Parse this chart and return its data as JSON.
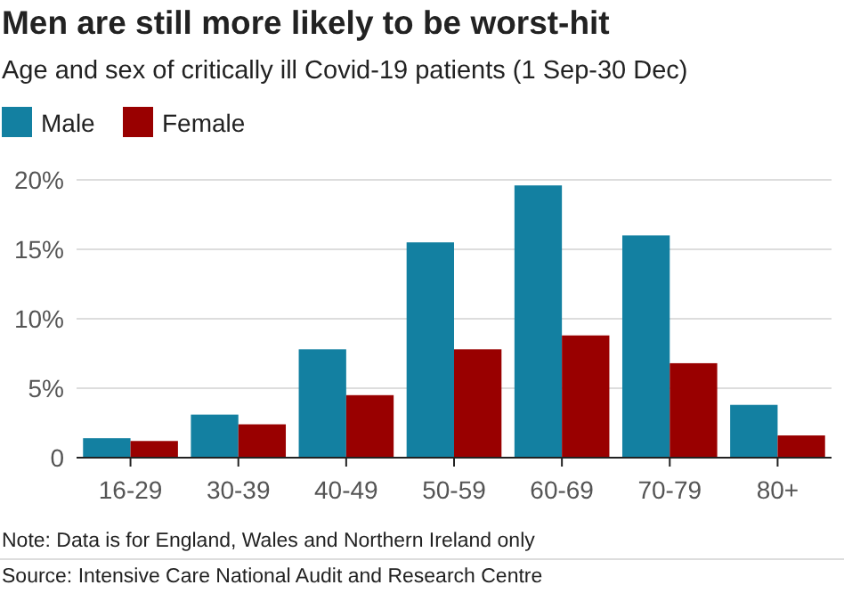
{
  "chart_data": {
    "type": "bar",
    "title": "Men are still more likely to be worst-hit",
    "subtitle": "Age and sex of critically ill Covid-19 patients (1 Sep-30 Dec)",
    "categories": [
      "16-29",
      "30-39",
      "40-49",
      "50-59",
      "60-69",
      "70-79",
      "80+"
    ],
    "series": [
      {
        "name": "Male",
        "color": "#1380a1",
        "values": [
          1.4,
          3.1,
          7.8,
          15.5,
          19.6,
          16.0,
          3.8
        ]
      },
      {
        "name": "Female",
        "color": "#990000",
        "values": [
          1.2,
          2.4,
          4.5,
          7.8,
          8.8,
          6.8,
          1.6
        ]
      }
    ],
    "ylim": [
      0,
      20
    ],
    "yticks": [
      {
        "value": 0,
        "label": "0"
      },
      {
        "value": 5,
        "label": "5%"
      },
      {
        "value": 10,
        "label": "10%"
      },
      {
        "value": 15,
        "label": "15%"
      },
      {
        "value": 20,
        "label": "20%"
      }
    ],
    "grid": "y",
    "legend": "top left",
    "annotations": [
      "Note: Data is for England, Wales and Northern Ireland only",
      "Source: Intensive Care National Audit and Research Centre"
    ]
  }
}
